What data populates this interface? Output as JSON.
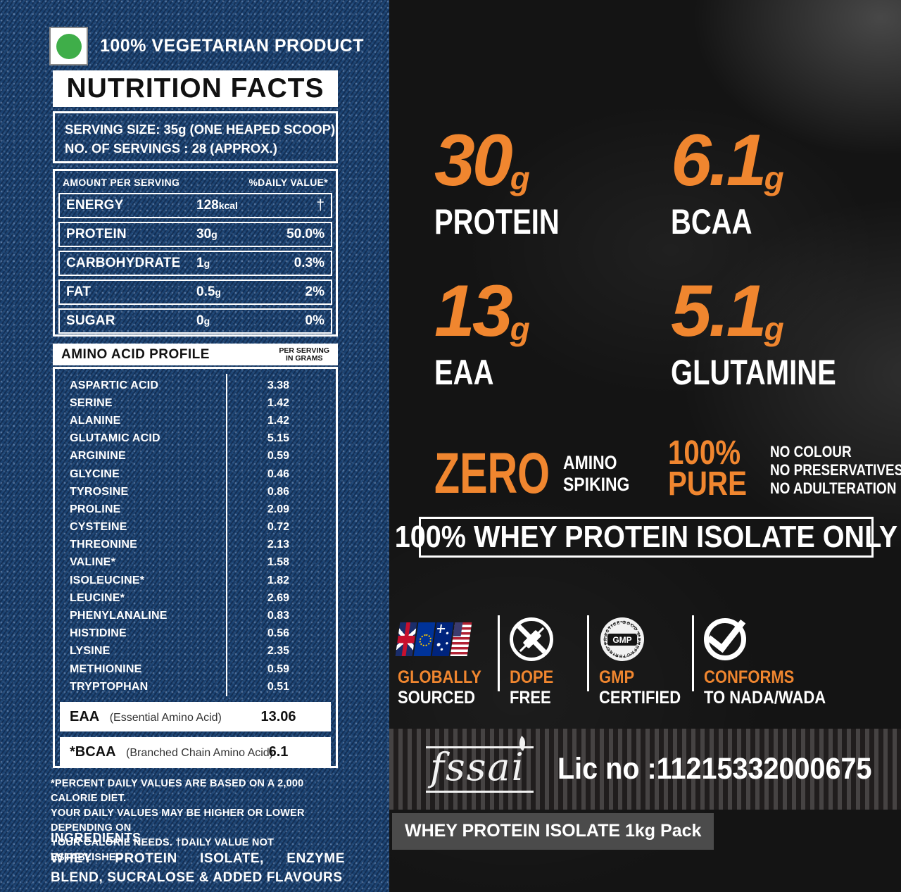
{
  "colors": {
    "orange": "#F0862F",
    "denim_blue": "#1A4170",
    "veg_green": "#3FAE49"
  },
  "left": {
    "veg_mark_label": "100% VEGETARIAN PRODUCT",
    "title": "NUTRITION FACTS",
    "serving_line1": "SERVING SIZE: 35g   (ONE HEAPED SCOOP)",
    "serving_line2": "NO. OF SERVINGS : 28 (APPROX.)",
    "table": {
      "header_left": "AMOUNT PER SERVING",
      "header_right": "%DAILY VALUE*",
      "rows": [
        {
          "name": "ENERGY",
          "amount": "128",
          "unit": "kcal",
          "dv": "†"
        },
        {
          "name": "PROTEIN",
          "amount": "30",
          "unit": "g",
          "dv": "50.0%"
        },
        {
          "name": "CARBOHYDRATE",
          "amount": "1",
          "unit": "g",
          "dv": "0.3%"
        },
        {
          "name": "FAT",
          "amount": "0.5",
          "unit": "g",
          "dv": "2%"
        },
        {
          "name": "SUGAR",
          "amount": "0",
          "unit": "g",
          "dv": "0%"
        }
      ]
    },
    "amino": {
      "header": "AMINO ACID PROFILE",
      "header_right_line1": "PER SERVING",
      "header_right_line2": "IN GRAMS",
      "rows": [
        {
          "name": "ASPARTIC ACID",
          "value": "3.38"
        },
        {
          "name": "SERINE",
          "value": "1.42"
        },
        {
          "name": "ALANINE",
          "value": "1.42"
        },
        {
          "name": "GLUTAMIC ACID",
          "value": "5.15"
        },
        {
          "name": "ARGININE",
          "value": "0.59"
        },
        {
          "name": "GLYCINE",
          "value": "0.46"
        },
        {
          "name": "TYROSINE",
          "value": "0.86"
        },
        {
          "name": "PROLINE",
          "value": "2.09"
        },
        {
          "name": "CYSTEINE",
          "value": "0.72"
        },
        {
          "name": "THREONINE",
          "value": "2.13"
        },
        {
          "name": "VALINE*",
          "value": "1.58"
        },
        {
          "name": "ISOLEUCINE*",
          "value": "1.82"
        },
        {
          "name": "LEUCINE*",
          "value": "2.69"
        },
        {
          "name": "PHENYLANALINE",
          "value": "0.83"
        },
        {
          "name": "HISTIDINE",
          "value": "0.56"
        },
        {
          "name": "LYSINE",
          "value": "2.35"
        },
        {
          "name": "METHIONINE",
          "value": "0.59"
        },
        {
          "name": "TRYPTOPHAN",
          "value": "0.51"
        }
      ],
      "eaa": {
        "abbr": "EAA",
        "full": "(Essential Amino Acid)",
        "value": "13.06"
      },
      "bcaa": {
        "abbr": "*BCAA",
        "full": "(Branched Chain Amino Acid)",
        "value": "6.1"
      }
    },
    "footnote_lines": [
      "*PERCENT DAILY VALUES ARE BASED ON A 2,000 CALORIE DIET.",
      "YOUR DAILY VALUES MAY BE HIGHER OR LOWER DEPENDING ON",
      "YOUR CALORIE NEEDS. †DAILY VALUE NOT ESTABLISHED"
    ],
    "ingredients_heading": "INGREDIENTS",
    "ingredients_text": "WHEY PROTEIN ISOLATE, ENZYME BLEND, SUCRALOSE & ADDED FLAVOURS"
  },
  "right": {
    "stats": [
      {
        "value": "30",
        "unit": "g",
        "label": "PROTEIN"
      },
      {
        "value": "6.1",
        "unit": "g",
        "label": "BCAA"
      },
      {
        "value": "13",
        "unit": "g",
        "label": "EAA"
      },
      {
        "value": "5.1",
        "unit": "g",
        "label": "GLUTAMINE"
      }
    ],
    "zero_big": "ZERO",
    "zero_lines": [
      "AMINO",
      "SPIKING"
    ],
    "pure_big_lines": [
      "100%",
      "PURE"
    ],
    "pure_lines": [
      "NO COLOUR",
      "NO PRESERVATIVES",
      "NO ADULTERATION"
    ],
    "banner": "100% WHEY PROTEIN ISOLATE ONLY",
    "badges": [
      {
        "icon": "global-flags-icon",
        "title": "GLOBALLY",
        "subtitle": "SOURCED"
      },
      {
        "icon": "no-dope-icon",
        "title": "DOPE",
        "subtitle": "FREE"
      },
      {
        "icon": "gmp-seal-icon",
        "title": "GMP",
        "subtitle": "CERTIFIED"
      },
      {
        "icon": "check-circle-icon",
        "title": "CONFORMS",
        "subtitle": "TO NADA/WADA"
      }
    ],
    "gmp_seal_text": "GMP",
    "gmp_seal_ring_text": "GOOD MANUFACTURING PRACTICE",
    "fssai_logo": "fssai",
    "fssai_lic": "Lic no :11215332000675",
    "pack_label": "WHEY PROTEIN ISOLATE 1kg Pack"
  }
}
